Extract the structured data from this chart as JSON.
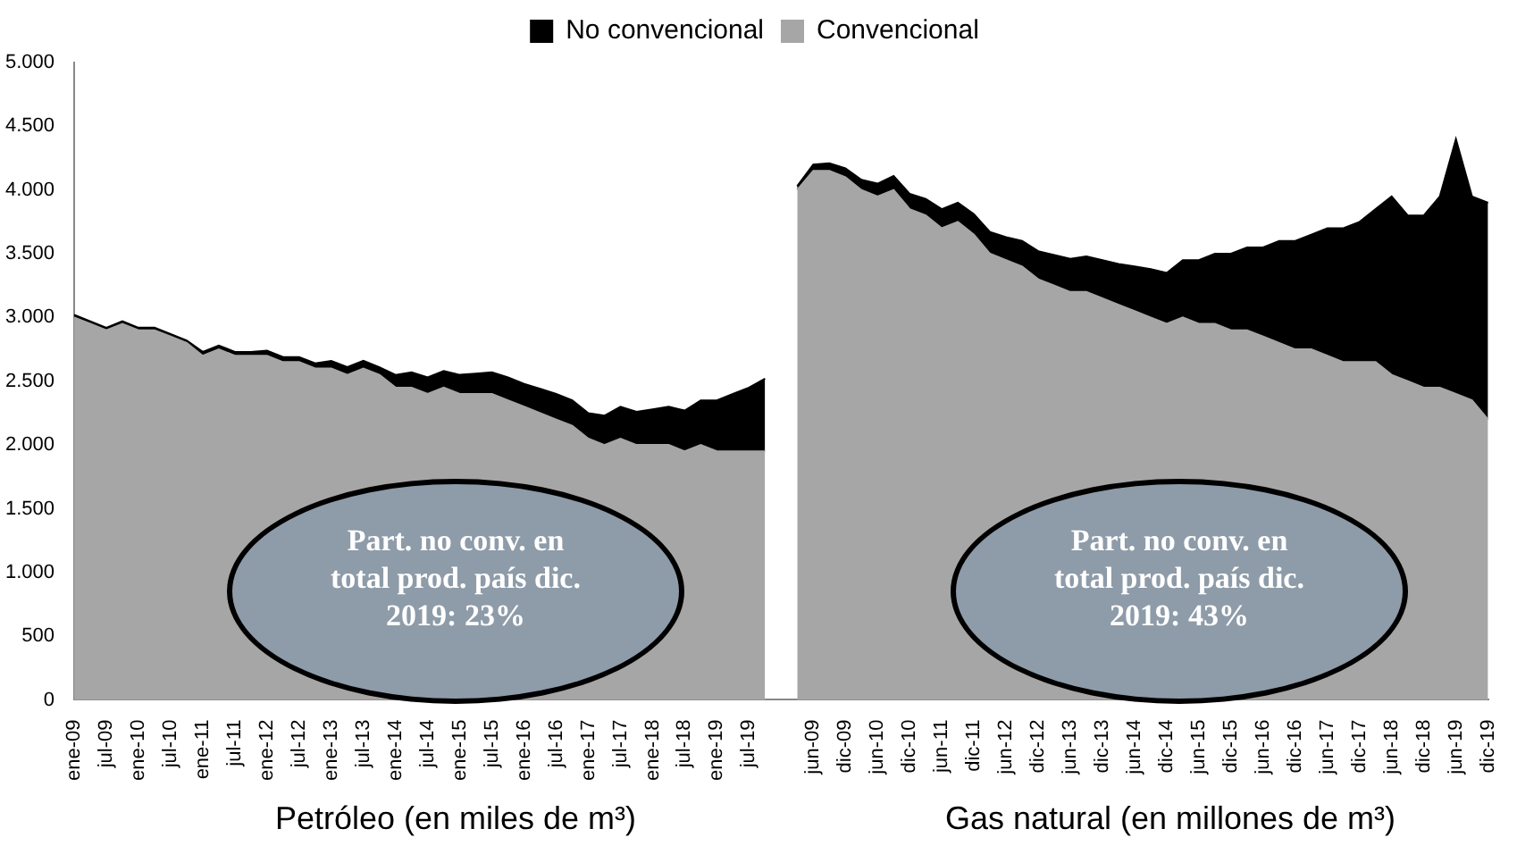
{
  "chart_data": {
    "type": "area",
    "stacked": true,
    "categories": [
      "ene-09",
      null,
      "jul-09",
      null,
      "ene-10",
      null,
      "jul-10",
      null,
      "ene-11",
      null,
      "jul-11",
      null,
      "ene-12",
      null,
      "jul-12",
      null,
      "ene-13",
      null,
      "jul-13",
      null,
      "ene-14",
      null,
      "jul-14",
      null,
      "ene-15",
      null,
      "jul-15",
      null,
      "ene-16",
      null,
      "jul-16",
      null,
      "ene-17",
      null,
      "jul-17",
      null,
      "ene-18",
      null,
      "jul-18",
      null,
      "ene-19",
      null,
      "jul-19",
      null,
      null,
      null,
      "jun-09",
      null,
      "dic-09",
      null,
      "jun-10",
      null,
      "dic-10",
      null,
      "jun-11",
      null,
      "dic-11",
      null,
      "jun-12",
      null,
      "dic-12",
      null,
      "jun-13",
      null,
      "dic-13",
      null,
      "jun-14",
      null,
      "dic-14",
      null,
      "jun-15",
      null,
      "dic-15",
      null,
      "jun-16",
      null,
      "dic-16",
      null,
      "jun-17",
      null,
      "dic-17",
      null,
      "jun-18",
      null,
      "dic-18",
      null,
      "jun-19",
      null,
      "dic-19"
    ],
    "series": [
      {
        "name": "Convencional",
        "color": "#a6a6a6",
        "values": [
          3000,
          2950,
          2900,
          2950,
          2900,
          2900,
          2850,
          2800,
          2700,
          2750,
          2700,
          2700,
          2700,
          2650,
          2650,
          2600,
          2600,
          2550,
          2600,
          2550,
          2450,
          2450,
          2400,
          2450,
          2400,
          2400,
          2400,
          2350,
          2300,
          2250,
          2200,
          2150,
          2050,
          2000,
          2050,
          2000,
          2000,
          2000,
          1950,
          2000,
          1950,
          1950,
          1950,
          1950,
          null,
          4000,
          4150,
          4150,
          4100,
          4000,
          3950,
          4000,
          3850,
          3800,
          3700,
          3750,
          3650,
          3500,
          3450,
          3400,
          3300,
          3250,
          3200,
          3200,
          3150,
          3100,
          3050,
          3000,
          2950,
          3000,
          2950,
          2950,
          2900,
          2900,
          2850,
          2800,
          2750,
          2750,
          2700,
          2650,
          2650,
          2650,
          2550,
          2500,
          2450,
          2450,
          2400,
          2350,
          2200
        ]
      },
      {
        "name": "No convencional",
        "color": "#000000",
        "values": [
          20,
          20,
          20,
          20,
          20,
          20,
          20,
          20,
          30,
          30,
          30,
          30,
          40,
          40,
          40,
          40,
          60,
          60,
          60,
          60,
          100,
          120,
          130,
          130,
          150,
          160,
          170,
          180,
          180,
          190,
          200,
          200,
          200,
          230,
          250,
          260,
          280,
          300,
          320,
          350,
          400,
          450,
          500,
          570,
          null,
          30,
          50,
          60,
          70,
          80,
          100,
          110,
          120,
          130,
          150,
          150,
          160,
          170,
          180,
          200,
          220,
          240,
          260,
          280,
          300,
          320,
          350,
          380,
          400,
          450,
          500,
          550,
          600,
          650,
          700,
          800,
          850,
          900,
          1000,
          1050,
          1100,
          1200,
          1400,
          1300,
          1350,
          1500,
          2000,
          1600,
          1700
        ]
      }
    ],
    "ylim": [
      0,
      5000
    ],
    "yticks": [
      0,
      500,
      {
        "value": 1000,
        "label": "1.000"
      },
      {
        "value": 1500,
        "label": "1.500"
      },
      {
        "value": 2000,
        "label": "2.000"
      },
      {
        "value": 2500,
        "label": "2.500"
      },
      {
        "value": 3000,
        "label": "3.000"
      },
      {
        "value": 3500,
        "label": "3.500"
      },
      {
        "value": 4000,
        "label": "4.000"
      },
      {
        "value": 4500,
        "label": "4.500"
      },
      {
        "value": 5000,
        "label": "5.000"
      }
    ],
    "grid": false,
    "legend": "top",
    "annotations": [
      "Petróleo (en miles de m³)",
      "Gas natural (en millones de m³)",
      "Part. no conv. en total prod. país dic. 2019: 23%",
      "Part. no conv. en total prod. país dic. 2019: 43%"
    ]
  }
}
